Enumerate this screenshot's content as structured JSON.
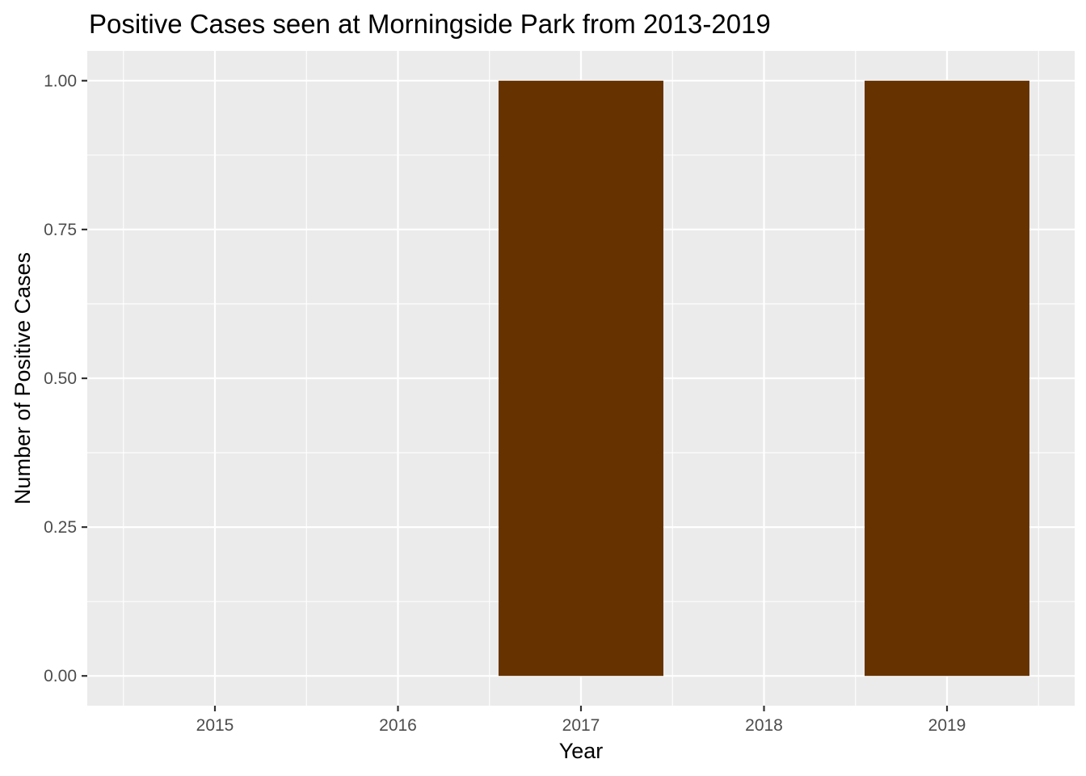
{
  "chart_data": {
    "type": "bar",
    "title": "Positive Cases seen at Morningside Park from 2013-2019",
    "xlabel": "Year",
    "ylabel": "Number of Positive Cases",
    "categories": [
      "2015",
      "2016",
      "2017",
      "2018",
      "2019"
    ],
    "values": [
      0,
      0,
      1,
      0,
      1
    ],
    "ylim": [
      -0.05,
      1.05
    ],
    "yticks": [
      0.0,
      0.25,
      0.5,
      0.75,
      1.0
    ],
    "ytick_labels": [
      "0.00",
      "0.25",
      "0.50",
      "0.75",
      "1.00"
    ],
    "bar_color": "#663300",
    "panel_color": "#EBEBEB",
    "grid_color": "#FFFFFF",
    "grid": true,
    "legend": "none"
  }
}
